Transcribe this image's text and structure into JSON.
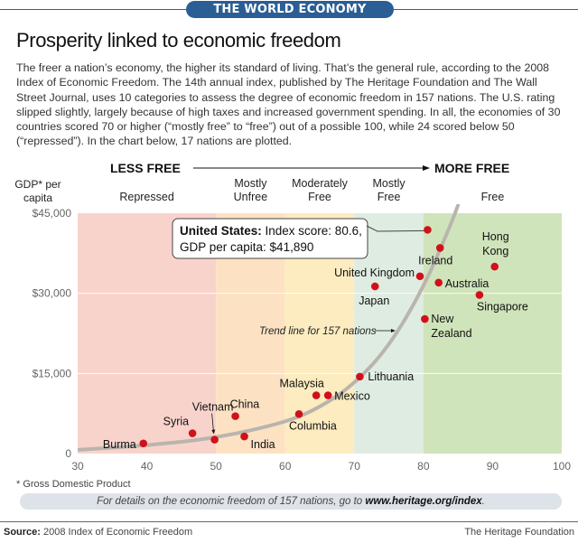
{
  "header": {
    "section_badge": "THE WORLD ECONOMY",
    "title": "Prosperity linked to economic freedom",
    "intro": "The freer a nation’s economy, the higher its standard of living. That’s the general rule, according to the 2008 Index of Economic Freedom. The 14th annual index, published by The Heritage Foundation and The Wall Street Journal, uses 10 categories to assess the degree of economic freedom in 157 nations. The U.S. rating slipped slightly, largely because of high taxes and increased government spending. In all, the economies of 30 countries scored 70 or higher (“mostly free” to “free”) out of a possible 100, while 24 scored below 50 (“repressed”). In the chart below, 17 nations are plotted."
  },
  "chart_data": {
    "type": "scatter",
    "title": "Prosperity linked to economic freedom",
    "xlabel": "Index of Economic Freedom score",
    "ylabel": "GDP* per capita",
    "xlim": [
      30,
      100
    ],
    "ylim": [
      0,
      45000
    ],
    "x_ticks": [
      "30",
      "40",
      "50",
      "60",
      "70",
      "80",
      "90",
      "100"
    ],
    "x_tick_values": [
      30,
      40,
      50,
      60,
      70,
      80,
      90,
      100
    ],
    "y_ticks": [
      "0",
      "$15,000",
      "$30,000",
      "$45,000"
    ],
    "y_tick_values": [
      0,
      15000,
      30000,
      45000
    ],
    "grid": "horizontal",
    "direction_label_left": "LESS FREE",
    "direction_label_right": "MORE FREE",
    "ylabel_lines": [
      "GDP* per",
      "capita"
    ],
    "bands": [
      {
        "label_lines": [
          "Repressed"
        ],
        "from": 30,
        "to": 50,
        "color": "#f8d3cc"
      },
      {
        "label_lines": [
          "Mostly",
          "Unfree"
        ],
        "from": 50,
        "to": 60,
        "color": "#fce2c3"
      },
      {
        "label_lines": [
          "Moderately",
          "Free"
        ],
        "from": 60,
        "to": 70,
        "color": "#fcecc0"
      },
      {
        "label_lines": [
          "Mostly",
          "Free"
        ],
        "from": 70,
        "to": 80,
        "color": "#dfece2"
      },
      {
        "label_lines": [
          "Free"
        ],
        "from": 80,
        "to": 100,
        "color": "#d0e4bb"
      }
    ],
    "point_color": "#d0111b",
    "trend_color": "#b9b5ad",
    "trend_label": "Trend line for 157 nations",
    "points": [
      {
        "name": "Burma",
        "label_lines": [
          "Burma"
        ],
        "x": 39.5,
        "y": 1900
      },
      {
        "name": "Syria",
        "label_lines": [
          "Syria"
        ],
        "x": 46.6,
        "y": 3800
      },
      {
        "name": "Vietnam",
        "label_lines": [
          "Vietnam"
        ],
        "x": 49.8,
        "y": 2600
      },
      {
        "name": "China",
        "label_lines": [
          "China"
        ],
        "x": 52.8,
        "y": 7000
      },
      {
        "name": "India",
        "label_lines": [
          "India"
        ],
        "x": 54.1,
        "y": 3200
      },
      {
        "name": "Columbia",
        "label_lines": [
          "Columbia"
        ],
        "x": 62.0,
        "y": 7400
      },
      {
        "name": "Malaysia",
        "label_lines": [
          "Malaysia"
        ],
        "x": 64.5,
        "y": 10900
      },
      {
        "name": "Mexico",
        "label_lines": [
          "Mexico"
        ],
        "x": 66.2,
        "y": 10900
      },
      {
        "name": "Lithuania",
        "label_lines": [
          "Lithuania"
        ],
        "x": 70.8,
        "y": 14400
      },
      {
        "name": "Japan",
        "label_lines": [
          "Japan"
        ],
        "x": 73.0,
        "y": 31300
      },
      {
        "name": "United Kingdom",
        "label_lines": [
          "United Kingdom"
        ],
        "x": 79.5,
        "y": 33200
      },
      {
        "name": "United States",
        "label_lines": [],
        "x": 80.6,
        "y": 41890
      },
      {
        "name": "Ireland",
        "label_lines": [
          "Ireland"
        ],
        "x": 82.4,
        "y": 38500
      },
      {
        "name": "Australia",
        "label_lines": [
          "Australia"
        ],
        "x": 82.2,
        "y": 32000
      },
      {
        "name": "New Zealand",
        "label_lines": [
          "New",
          "Zealand"
        ],
        "x": 80.2,
        "y": 25200
      },
      {
        "name": "Hong Kong",
        "label_lines": [
          "Hong",
          "Kong"
        ],
        "x": 90.3,
        "y": 35000
      },
      {
        "name": "Singapore",
        "label_lines": [
          "Singapore"
        ],
        "x": 88.1,
        "y": 29700
      }
    ],
    "callout": {
      "country_label": "United States:",
      "line1_rest": " Index score: 80.6,",
      "line2": "GDP per capita:  $41,890"
    },
    "trend_line": [
      [
        30,
        700
      ],
      [
        40,
        1500
      ],
      [
        50,
        2900
      ],
      [
        60,
        5800
      ],
      [
        65,
        8600
      ],
      [
        70,
        13000
      ],
      [
        75,
        20000
      ],
      [
        80,
        31000
      ],
      [
        84,
        43000
      ],
      [
        85,
        46500
      ]
    ]
  },
  "footnote": "* Gross Domestic Product",
  "details": {
    "text": "For details on the economic freedom of 157 nations, go to ",
    "link": "www.heritage.org/index",
    "end": "."
  },
  "footer": {
    "source_label": "Source:",
    "source_text": " 2008 Index of Economic Freedom",
    "publisher": "The Heritage Foundation"
  }
}
